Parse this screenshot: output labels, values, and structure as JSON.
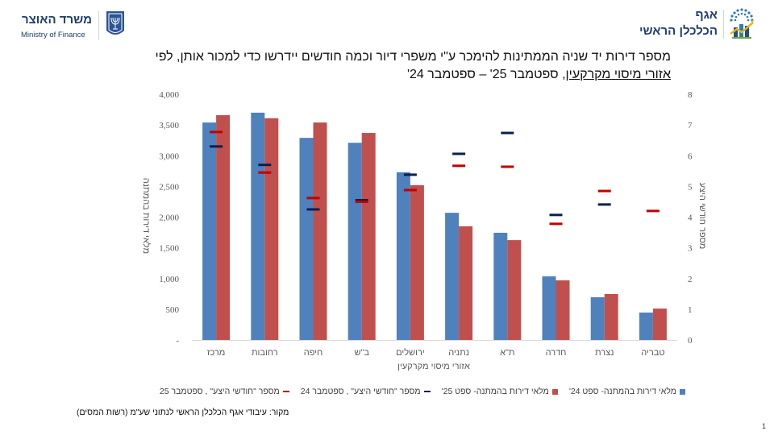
{
  "header": {
    "ministry_he": "משרד האוצר",
    "ministry_en": "Ministry of Finance",
    "dept_line1": "אגף",
    "dept_line2": "הכלכלן הראשי"
  },
  "title": {
    "line1": "מספר דירות יד שניה הממתינות להימכר ע\"י משפרי דיור וכמה חודשים יידרשו כדי למכור אותן, לפי",
    "line2_underlined": "אזורי מיסוי מקרקעין",
    "line2_rest": ", ספטמבר 25' – ספטמבר 24'"
  },
  "colors": {
    "bar_sep24": "#4f81bd",
    "bar_sep25": "#c0504d",
    "dash_sep24": "#0b1f4f",
    "dash_sep25": "#c00000"
  },
  "chart_data": {
    "type": "bar",
    "title": "",
    "xlabel": "אזורי מיסוי מקרקעין",
    "ylabel": "מלאי דירות בהמתנה",
    "y2label": "מספר חודשי היצע",
    "ylim": [
      0,
      4000
    ],
    "y2lim": [
      0,
      8
    ],
    "yticks": [
      "-",
      "500",
      "1,000",
      "1,500",
      "2,000",
      "2,500",
      "3,000",
      "3,500",
      "4,000"
    ],
    "y2ticks": [
      "0",
      "1",
      "2",
      "3",
      "4",
      "5",
      "6",
      "7",
      "8"
    ],
    "grid": false,
    "legend_position": "bottom",
    "categories": [
      "מרכז",
      "רחובות",
      "חיפה",
      "ב\"ש",
      "ירושלים",
      "נתניה",
      "ת\"א",
      "חדרה",
      "נצרת",
      "טבריה"
    ],
    "series": [
      {
        "name": "מלאי דירות בהמתנה- ספט 24'",
        "type": "bar",
        "axis": "left",
        "values": [
          3540,
          3700,
          3290,
          3210,
          2730,
          2070,
          1745,
          1035,
          695,
          446
        ]
      },
      {
        "name": "מלאי דירות בהמתנה- ספט 25'",
        "type": "bar",
        "axis": "left",
        "values": [
          3660,
          3610,
          3540,
          3370,
          2520,
          1850,
          1625,
          970,
          748,
          511
        ]
      },
      {
        "name": "מספר \"חודשי היצע\" , ספטמבר 24",
        "type": "marker",
        "axis": "right",
        "values": [
          6.3,
          5.7,
          4.25,
          4.55,
          5.38,
          6.06,
          6.74,
          4.07,
          4.41,
          null
        ]
      },
      {
        "name": "מספר \"חודשי היצע\" , ספטמבר 25",
        "type": "marker",
        "axis": "right",
        "values": [
          6.77,
          5.45,
          4.62,
          4.5,
          4.88,
          5.67,
          5.64,
          3.78,
          4.85,
          4.2
        ]
      }
    ]
  },
  "legend": [
    {
      "label": "מלאי דירות בהמתנה- ספט 24'",
      "kind": "bar",
      "color_key": "bar_sep24"
    },
    {
      "label": "מלאי דירות בהמתנה- ספט 25'",
      "kind": "bar",
      "color_key": "bar_sep25"
    },
    {
      "label": "מספר \"חודשי היצע\" , ספטמבר 24",
      "kind": "dash",
      "color_key": "dash_sep24"
    },
    {
      "label": "מספר \"חודשי היצע\" , ספטמבר 25",
      "kind": "dash",
      "color_key": "dash_sep25"
    }
  ],
  "source": "מקור: עיבודי אגף הכלכלן הראשי לנתוני שע\"מ (רשות המסים)",
  "page_number": "1"
}
